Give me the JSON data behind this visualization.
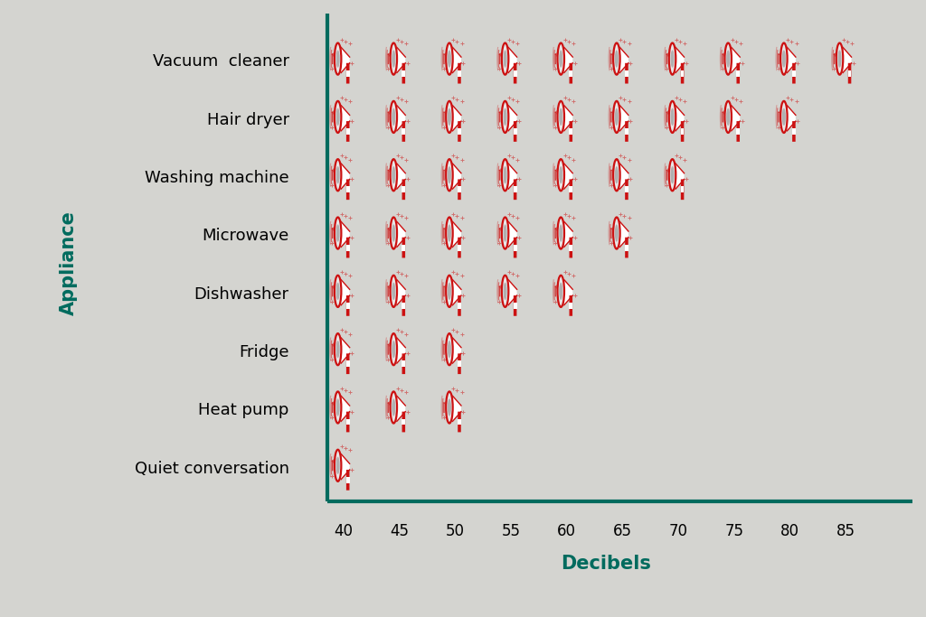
{
  "appliances": [
    {
      "name": "Quiet conversation",
      "max_db": 40
    },
    {
      "name": "Heat pump",
      "max_db": 50
    },
    {
      "name": "Fridge",
      "max_db": 50
    },
    {
      "name": "Dishwasher",
      "max_db": 60
    },
    {
      "name": "Microwave",
      "max_db": 65
    },
    {
      "name": "Washing machine",
      "max_db": 70
    },
    {
      "name": "Hair dryer",
      "max_db": 80
    },
    {
      "name": "Vacuum  cleaner",
      "max_db": 85
    }
  ],
  "db_min": 40,
  "db_max": 85,
  "db_step": 5,
  "background_color": "#d4d4d0",
  "axis_color": "#006b5e",
  "xlabel": "Decibels",
  "ylabel": "Appliance",
  "label_fontsize": 13,
  "tick_fontsize": 12,
  "axis_label_fontsize": 15
}
